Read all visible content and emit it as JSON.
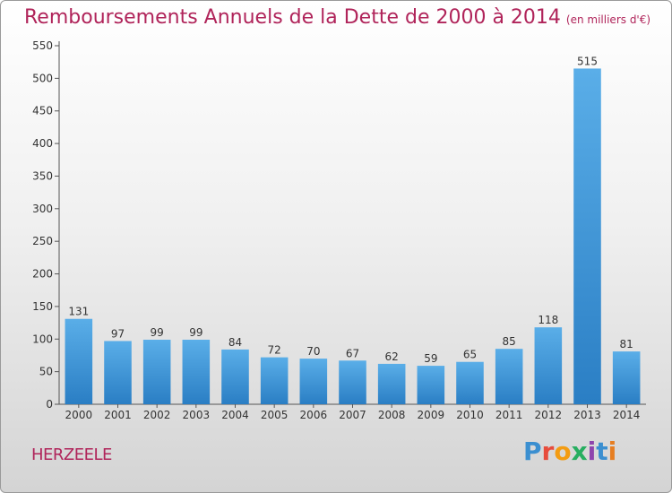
{
  "header": {
    "title": "Remboursements Annuels de la Dette de 2000 à 2014",
    "unit": "(en milliers d'€)"
  },
  "footer": {
    "commune": "HERZEELE",
    "logo_letters": [
      "P",
      "r",
      "o",
      "x",
      "i",
      "t",
      "i"
    ],
    "logo_colors": [
      "#3b8fd0",
      "#e74c3c",
      "#f39c12",
      "#27ae60",
      "#8e44ad",
      "#3b8fd0",
      "#e67e22"
    ]
  },
  "chart_data": {
    "type": "bar",
    "title": "Remboursements Annuels de la Dette de 2000 à 2014",
    "subtitle": "(en milliers d'€)",
    "categories": [
      "2000",
      "2001",
      "2002",
      "2003",
      "2004",
      "2005",
      "2006",
      "2007",
      "2008",
      "2009",
      "2010",
      "2011",
      "2012",
      "2013",
      "2014"
    ],
    "values": [
      131,
      97,
      99,
      99,
      84,
      72,
      70,
      67,
      62,
      59,
      65,
      85,
      118,
      515,
      81
    ],
    "ylim": [
      0,
      550
    ],
    "yticks": [
      0,
      50,
      100,
      150,
      200,
      250,
      300,
      350,
      400,
      450,
      500,
      550
    ],
    "grid": false,
    "bar_color_top": "#5aaee8",
    "bar_color_bottom": "#2a7ec4"
  }
}
